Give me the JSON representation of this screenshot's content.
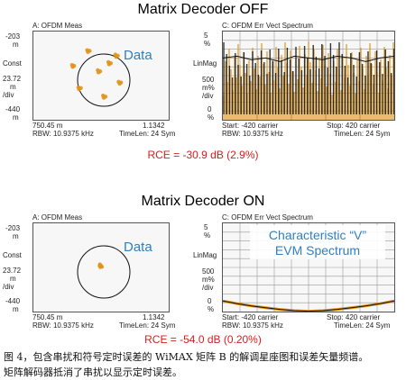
{
  "colors": {
    "accent_blue": "#2f7fc1",
    "orange": "#e09418",
    "rce_red": "#d42020",
    "trace_black": "#111111"
  },
  "top": {
    "heading": "Matrix Decoder OFF",
    "constellation": {
      "title": "A: OFDM Meas",
      "y_top": "-203",
      "y_top_unit": "m",
      "y_mid_label": "Const",
      "y_scale": "23.72",
      "y_scale_unit": "m",
      "y_scale_div": "/div",
      "y_bottom": "-440",
      "y_bottom_unit": "m",
      "x_left": "750.45 m",
      "x_right": "1.1342",
      "rbw": "RBW: 10.9375 kHz",
      "timelen": "TimeLen: 24  Sym",
      "annotation": "Data"
    },
    "spectrum": {
      "title": "C: OFDM Err Vect Spectrum",
      "y_top": "5",
      "y_top_unit": "%",
      "y_label": "LinMag",
      "y_scale": "500",
      "y_scale_unit": "m%",
      "y_scale_div": "/div",
      "y_bottom": "0",
      "y_bottom_unit": "%",
      "start": "Start: -420  carrier",
      "stop": "Stop: 420  carrier",
      "rbw": "RBW: 10.9375 kHz",
      "timelen": "TimeLen: 24  Sym"
    },
    "rce": "RCE = -30.9 dB (2.9%)"
  },
  "bottom": {
    "heading": "Matrix Decoder ON",
    "constellation": {
      "title": "A: OFDM Meas",
      "y_top": "-203",
      "y_top_unit": "m",
      "y_mid_label": "Const",
      "y_scale": "23.72",
      "y_scale_unit": "m",
      "y_scale_div": "/div",
      "y_bottom": "-440",
      "y_bottom_unit": "m",
      "x_left": "750.45 m",
      "x_right": "1.1342",
      "rbw": "RBW: 10.9375 kHz",
      "timelen": "TimeLen: 24  Sym",
      "annotation": "Data"
    },
    "spectrum": {
      "title": "C: OFDM Err Vect Spectrum",
      "y_top": "5",
      "y_top_unit": "%",
      "y_label": "LinMag",
      "y_scale": "500",
      "y_scale_unit": "m%",
      "y_scale_div": "/div",
      "y_bottom": "0",
      "y_bottom_unit": "%",
      "start": "Start: -420  carrier",
      "stop": "Stop: 420  carrier",
      "rbw": "RBW: 10.9375 kHz",
      "timelen": "TimeLen: 24  Sym",
      "annotation_line1": "Characteristic “V”",
      "annotation_line2": "EVM Spectrum"
    },
    "rce": "RCE = -54.0 dB (0.20%)"
  },
  "caption": {
    "line1": "图 4，包含串扰和符号定时误差的 WiMAX 矩阵 B 的解调星座图和误差矢量频谱。",
    "line2": "矩阵解码器抵消了串扰以显示定时误差。"
  },
  "chart_data": [
    {
      "type": "scatter",
      "title": "A: OFDM Meas",
      "ylabel": "Const",
      "xlim": [
        0.75045,
        1.1342
      ],
      "ylim": [
        -0.44,
        -0.203
      ],
      "grid": false,
      "series": [
        {
          "values_note_free": true,
          "points": [
            [
              0.88,
              -0.285
            ],
            [
              0.885,
              -0.288
            ],
            [
              0.878,
              -0.29
            ],
            [
              0.95,
              -0.262
            ],
            [
              0.955,
              -0.265
            ],
            [
              0.948,
              -0.268
            ],
            [
              0.995,
              -0.3
            ],
            [
              0.999,
              -0.303
            ],
            [
              0.992,
              -0.305
            ],
            [
              0.862,
              -0.345
            ],
            [
              0.866,
              -0.348
            ],
            [
              0.86,
              -0.35
            ],
            [
              0.935,
              -0.33
            ],
            [
              0.94,
              -0.333
            ],
            [
              0.933,
              -0.336
            ],
            [
              0.965,
              -0.352
            ],
            [
              0.97,
              -0.355
            ],
            [
              0.963,
              -0.358
            ],
            [
              0.905,
              -0.385
            ],
            [
              0.91,
              -0.388
            ],
            [
              0.903,
              -0.39
            ],
            [
              0.985,
              -0.372
            ],
            [
              0.99,
              -0.375
            ],
            [
              0.983,
              -0.378
            ]
          ]
        }
      ]
    },
    {
      "type": "line",
      "title": "C: OFDM Err Vect Spectrum",
      "ylabel": "LinMag",
      "xlim": [
        -420,
        420
      ],
      "ylim": [
        0,
        5
      ],
      "grid": true,
      "series": [
        {
          "x": [
            -420,
            -350,
            -280,
            -210,
            -140,
            -70,
            0,
            70,
            140,
            210,
            280,
            350,
            420
          ],
          "values": [
            3.5,
            3.6,
            3.4,
            3.5,
            3.3,
            3.6,
            3.5,
            3.4,
            3.6,
            3.5,
            3.3,
            3.5,
            3.6
          ]
        }
      ]
    },
    {
      "type": "scatter",
      "title": "A: OFDM Meas",
      "ylabel": "Const",
      "xlim": [
        0.75045,
        1.1342
      ],
      "ylim": [
        -0.44,
        -0.203
      ],
      "grid": false,
      "series": [
        {
          "points": [
            [
              0.94,
              -0.322
            ],
            [
              0.943,
              -0.325
            ],
            [
              0.938,
              -0.326
            ],
            [
              0.941,
              -0.328
            ],
            [
              0.945,
              -0.323
            ],
            [
              0.939,
              -0.33
            ]
          ]
        }
      ]
    },
    {
      "type": "line",
      "title": "C: OFDM Err Vect Spectrum",
      "ylabel": "LinMag",
      "xlim": [
        -420,
        420
      ],
      "ylim": [
        0,
        5
      ],
      "grid": true,
      "series": [
        {
          "x": [
            -420,
            -350,
            -280,
            -210,
            -140,
            -70,
            0,
            70,
            140,
            210,
            280,
            350,
            420
          ],
          "values": [
            0.6,
            0.45,
            0.32,
            0.22,
            0.12,
            0.05,
            0.02,
            0.05,
            0.12,
            0.22,
            0.32,
            0.45,
            0.6
          ]
        }
      ]
    }
  ]
}
